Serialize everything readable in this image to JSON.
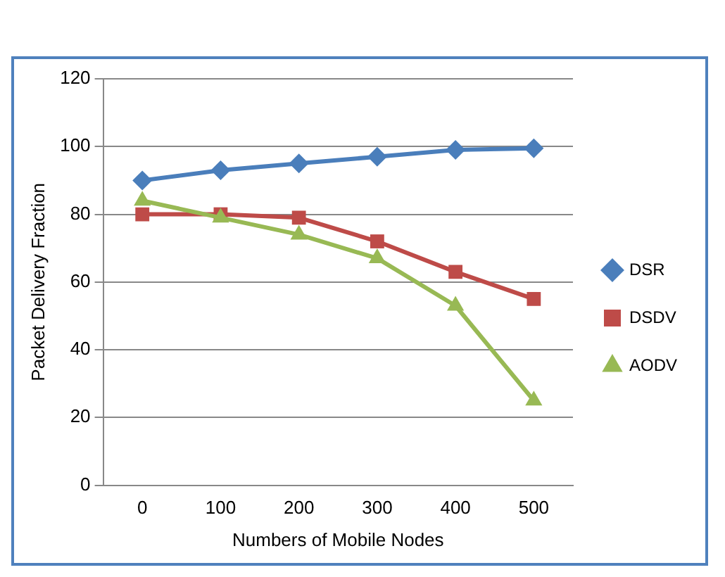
{
  "chart_data": {
    "type": "line",
    "ylabel": "Packet Delivery Fraction",
    "xlabel": "Numbers of Mobile Nodes",
    "categories": [
      "0",
      "100",
      "200",
      "300",
      "400",
      "500"
    ],
    "series": [
      {
        "name": "DSR",
        "color": "#4a7ebb",
        "marker": "diamond",
        "values": [
          90,
          93,
          95,
          97,
          99,
          99.5
        ]
      },
      {
        "name": "DSDV",
        "color": "#be4b48",
        "marker": "square",
        "values": [
          80,
          80,
          79,
          72,
          63,
          55
        ]
      },
      {
        "name": "AODV",
        "color": "#98b954",
        "marker": "triangle",
        "values": [
          84,
          79,
          74,
          67,
          53,
          25
        ]
      }
    ],
    "ylim": [
      0,
      120
    ],
    "yticks": [
      0,
      20,
      40,
      60,
      80,
      100,
      120
    ],
    "grid": "y",
    "legend": "right",
    "line_style": "solid"
  }
}
